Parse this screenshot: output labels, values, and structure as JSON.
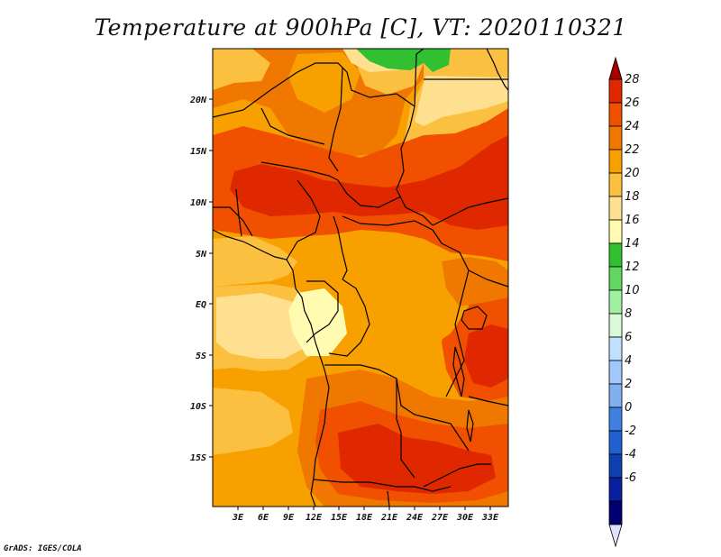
{
  "title": "Temperature at 900hPa [C], VT: 2020110321",
  "credit": "GrADS: IGES/COLA",
  "lat_labels": [
    "20N",
    "15N",
    "10N",
    "5N",
    "EQ",
    "5S",
    "10S",
    "15S"
  ],
  "lon_labels": [
    "3E",
    "6E",
    "9E",
    "12E",
    "15E",
    "18E",
    "21E",
    "24E",
    "27E",
    "30E",
    "33E"
  ],
  "colorbar": {
    "labels": [
      "28",
      "26",
      "24",
      "22",
      "20",
      "18",
      "16",
      "14",
      "12",
      "10",
      "8",
      "6",
      "4",
      "2",
      "0",
      "-2",
      "-4",
      "-6"
    ],
    "colors": [
      "#a50000",
      "#e02800",
      "#f05000",
      "#f07800",
      "#f8a000",
      "#fcc040",
      "#fee090",
      "#fffbb0",
      "#30c030",
      "#60d860",
      "#a0f0a0",
      "#d8fad8",
      "#c0e0ff",
      "#a0c8f8",
      "#80b0f0",
      "#4080e0",
      "#2060d0",
      "#1040b0",
      "#0820a0",
      "#000070",
      "#e0e0ff"
    ]
  },
  "field": {
    "variable": "Temperature at 900hPa",
    "units": "C",
    "valid_time": "2020110321",
    "lat_range": [
      -20,
      25
    ],
    "lon_range": [
      0,
      35
    ],
    "palette": {
      "t16_18": "#fffbb0",
      "t18_20": "#fee090",
      "t20_22": "#fcc040",
      "t22_24": "#f8a000",
      "t24_26": "#f07800",
      "t26_28": "#f05000",
      "t28_plus": "#e02800",
      "t14_16": "#30c030"
    }
  }
}
